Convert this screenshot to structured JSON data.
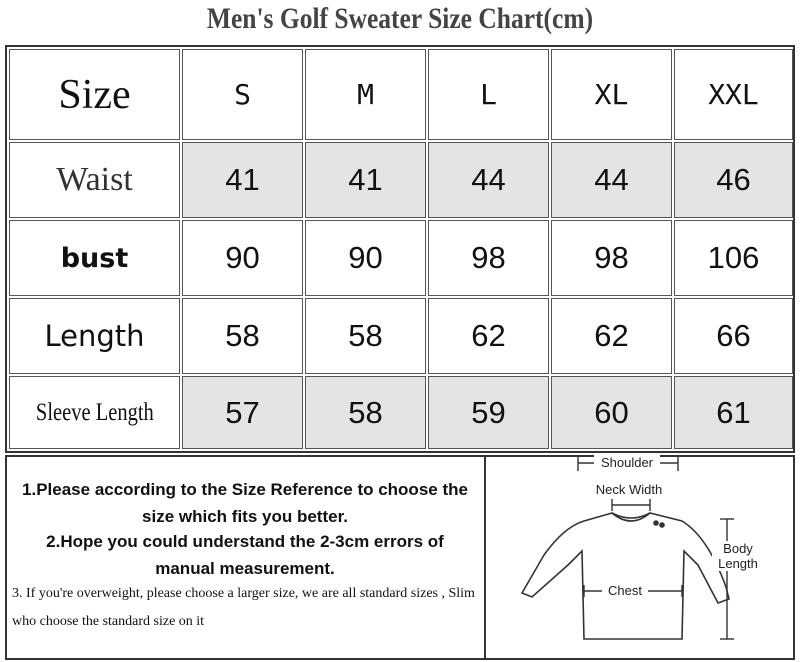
{
  "title": "Men's Golf Sweater Size Chart(cm)",
  "table": {
    "header": [
      "Size",
      "S",
      "M",
      "L",
      "XL",
      "XXL"
    ],
    "rows": [
      [
        "Waist",
        41,
        41,
        44,
        44,
        46
      ],
      [
        "bust",
        90,
        90,
        98,
        98,
        106
      ],
      [
        "Length",
        58,
        58,
        62,
        62,
        66
      ],
      [
        "Sleeve Length",
        57,
        58,
        59,
        60,
        61
      ]
    ]
  },
  "notes": [
    "1.Please according to the Size Reference to choose the size which fits you better.",
    "2.Hope you could understand the 2-3cm errors of manual measurement.",
    "3. If you're overweight, please choose a larger size, we are all standard sizes , Slim who choose the standard size on it"
  ],
  "diagram": {
    "shoulder": "Shoulder",
    "neck_width": "Neck Width",
    "body_length": "Body Length",
    "chest": "Chest"
  }
}
